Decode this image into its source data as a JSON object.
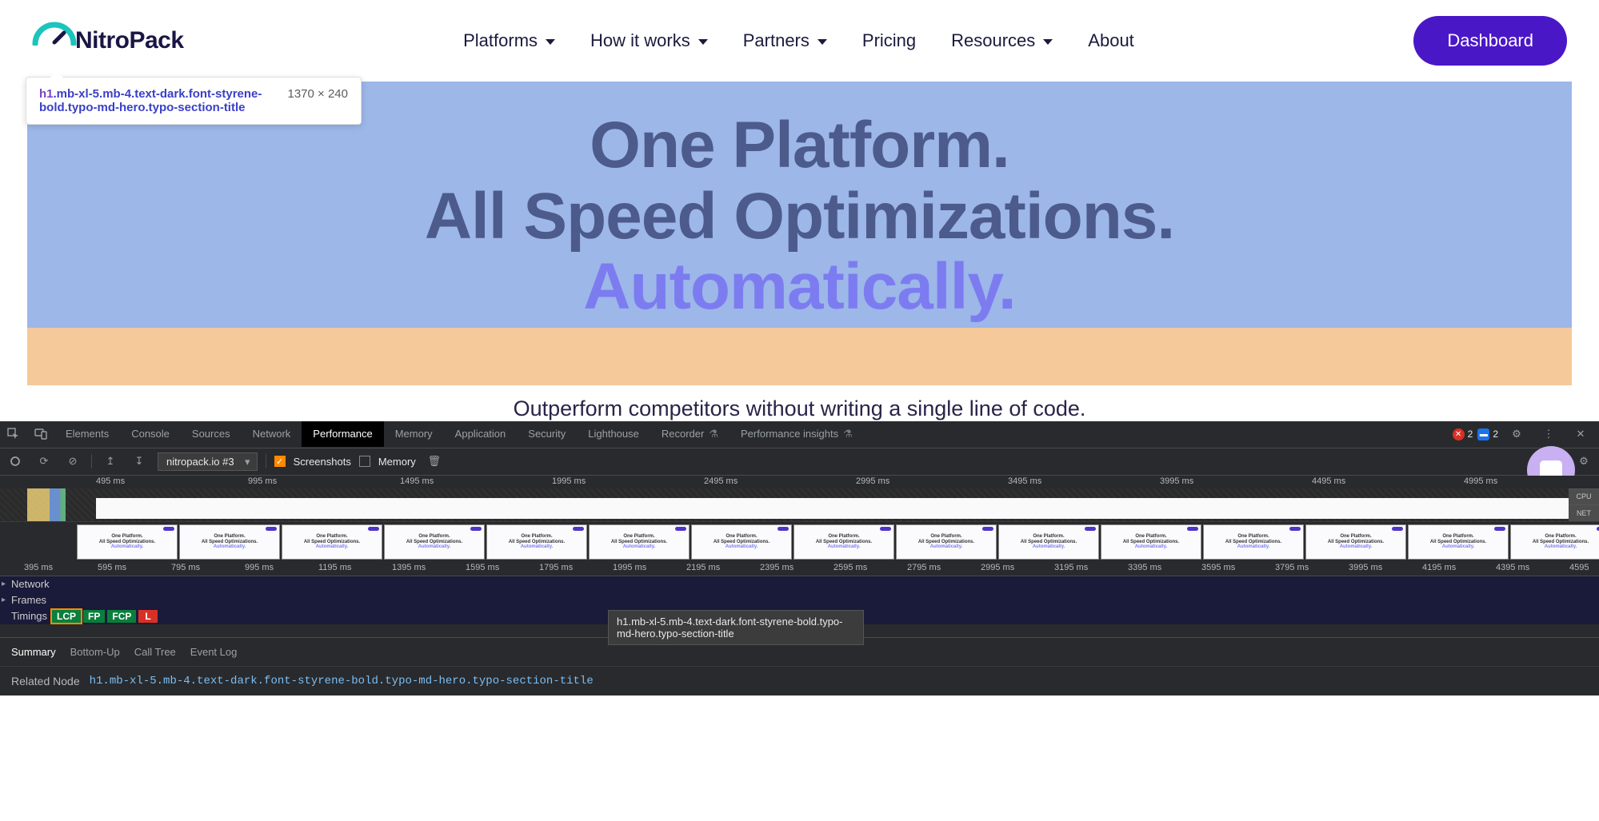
{
  "nav": {
    "logo_text": "NitroPack",
    "logo_arc_color": "#1bc4bd",
    "items": [
      "Platforms",
      "How it works",
      "Partners",
      "Pricing",
      "Resources",
      "About"
    ],
    "dropdown_flags": [
      true,
      true,
      true,
      false,
      true,
      false
    ],
    "dashboard_label": "Dashboard"
  },
  "inspector_tip": {
    "tag": "h1",
    "classes": ".mb-xl-5.mb-4.text-dark.font-styrene-bold.typo-md-hero.typo-section-title",
    "dims": "1370 × 240"
  },
  "hero": {
    "line1": "One Platform.",
    "line2": "All Speed Optimizations.",
    "line3": "Automatically.",
    "subhead": "Outperform competitors without writing a single line of code.",
    "highlight_bg": "#9cb7e8",
    "margin_bg": "#f5c99a",
    "text_color": "#4c5b8c",
    "accent_color": "#7c7cf0"
  },
  "devtools": {
    "tabs": [
      "Elements",
      "Console",
      "Sources",
      "Network",
      "Performance",
      "Memory",
      "Application",
      "Security",
      "Lighthouse",
      "Recorder",
      "Performance insights"
    ],
    "active_tab": "Performance",
    "beta_tabs": [
      "Recorder",
      "Performance insights"
    ],
    "errors": 2,
    "info": 2,
    "toolbar": {
      "recording": "nitropack.io #3",
      "screenshots_checked": true,
      "screenshots_label": "Screenshots",
      "memory_checked": false,
      "memory_label": "Memory"
    },
    "overview_ticks": [
      "495 ms",
      "995 ms",
      "1495 ms",
      "1995 ms",
      "2495 ms",
      "2995 ms",
      "3495 ms",
      "3995 ms",
      "4495 ms",
      "4995 ms"
    ],
    "overview_side": [
      "CPU",
      "NET"
    ],
    "ruler2_ticks": [
      "395 ms",
      "595 ms",
      "795 ms",
      "995 ms",
      "1195 ms",
      "1395 ms",
      "1595 ms",
      "1795 ms",
      "1995 ms",
      "2195 ms",
      "2395 ms",
      "2595 ms",
      "2795 ms",
      "2995 ms",
      "3195 ms",
      "3395 ms",
      "3595 ms",
      "3795 ms",
      "3995 ms",
      "4195 ms",
      "4395 ms",
      "4595"
    ],
    "filmstrip_text": {
      "l1": "One Platform.",
      "l2": "All Speed Optimizations.",
      "l3": "Automatically."
    },
    "tracks": {
      "network": "Network",
      "frames": "Frames",
      "timings": "Timings"
    },
    "markers": {
      "lcp": "LCP",
      "fp": "FP",
      "fcp": "FCP",
      "l": "L"
    },
    "node_tooltip": "h1.mb-xl-5.mb-4.text-dark.font-styrene-bold.typo-md-hero.typo-section-title",
    "bottom_tabs": [
      "Summary",
      "Bottom-Up",
      "Call Tree",
      "Event Log"
    ],
    "bottom_active": "Summary",
    "related_label": "Related Node",
    "related_value": "h1.mb-xl-5.mb-4.text-dark.font-styrene-bold.typo-md-hero.typo-section-title"
  },
  "colors": {
    "devtools_bg": "#292a2d",
    "accent_purple": "#4a17c7",
    "chat_bubble": "#c8b0f2"
  }
}
